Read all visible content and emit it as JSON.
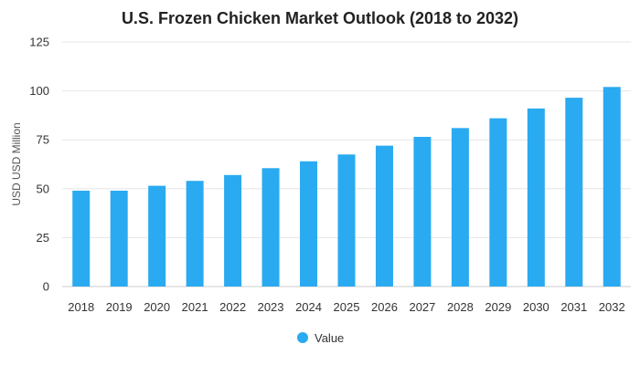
{
  "chart_data": {
    "type": "bar",
    "title": "U.S. Frozen Chicken Market Outlook (2018 to 2032)",
    "xlabel": "",
    "ylabel": "USD USD Million",
    "ylim": [
      0,
      125
    ],
    "yticks": [
      0,
      25,
      50,
      75,
      100,
      125
    ],
    "grid": true,
    "legend_position": "bottom",
    "categories": [
      "2018",
      "2019",
      "2020",
      "2021",
      "2022",
      "2023",
      "2024",
      "2025",
      "2026",
      "2027",
      "2028",
      "2029",
      "2030",
      "2031",
      "2032"
    ],
    "series": [
      {
        "name": "Value",
        "color": "#2aaaf0",
        "values": [
          49,
          49,
          51.5,
          54,
          57,
          60.5,
          64,
          67.5,
          72,
          76.5,
          81,
          86,
          91,
          96.5,
          102
        ]
      }
    ]
  }
}
